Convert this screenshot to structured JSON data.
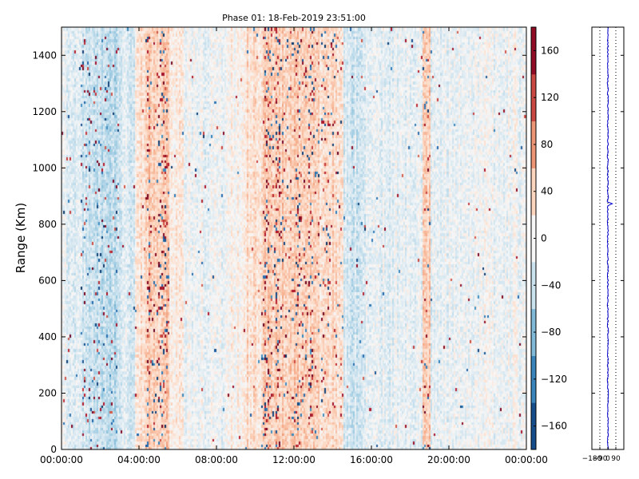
{
  "chart_data": [
    {
      "type": "heatmap",
      "title": "Phase 01: 18-Feb-2019 23:51:00",
      "ylabel": "Range (Km)",
      "xlabel": "",
      "x_tick_labels": [
        "00:00:00",
        "04:00:00",
        "08:00:00",
        "12:00:00",
        "16:00:00",
        "20:00:00",
        "00:00:00"
      ],
      "x_ticks_hours": [
        0,
        4,
        8,
        12,
        16,
        20,
        24
      ],
      "xlim_hours": [
        0,
        24
      ],
      "ylim": [
        0,
        1500
      ],
      "y_ticks": [
        0,
        200,
        400,
        600,
        800,
        1000,
        1200,
        1400
      ],
      "y_tick_labels": [
        "0",
        "200",
        "400",
        "600",
        "800",
        "1000",
        "1200",
        "1400"
      ],
      "colorbar": {
        "range": [
          -180,
          180
        ],
        "ticks": [
          -160,
          -120,
          -80,
          -40,
          0,
          40,
          80,
          120,
          160
        ],
        "tick_labels": [
          "−160",
          "−120",
          "−80",
          "−40",
          "0",
          "40",
          "80",
          "120",
          "160"
        ],
        "colormap": "RdBu_r"
      },
      "vertical_bands": [
        {
          "start_hour": 0.0,
          "end_hour": 1.0,
          "mean_phase": -15
        },
        {
          "start_hour": 1.0,
          "end_hour": 2.0,
          "mean_phase": -35
        },
        {
          "start_hour": 2.0,
          "end_hour": 3.0,
          "mean_phase": -45
        },
        {
          "start_hour": 3.0,
          "end_hour": 3.8,
          "mean_phase": -25
        },
        {
          "start_hour": 3.8,
          "end_hour": 4.3,
          "mean_phase": 25
        },
        {
          "start_hour": 4.3,
          "end_hour": 5.6,
          "mean_phase": 45
        },
        {
          "start_hour": 5.6,
          "end_hour": 6.3,
          "mean_phase": 15
        },
        {
          "start_hour": 6.3,
          "end_hour": 8.5,
          "mean_phase": -8
        },
        {
          "start_hour": 8.5,
          "end_hour": 9.6,
          "mean_phase": 8
        },
        {
          "start_hour": 9.6,
          "end_hour": 10.3,
          "mean_phase": 28
        },
        {
          "start_hour": 10.3,
          "end_hour": 13.2,
          "mean_phase": 42
        },
        {
          "start_hour": 13.2,
          "end_hour": 14.6,
          "mean_phase": 32
        },
        {
          "start_hour": 14.6,
          "end_hour": 15.6,
          "mean_phase": -30
        },
        {
          "start_hour": 15.6,
          "end_hour": 18.7,
          "mean_phase": -15
        },
        {
          "start_hour": 18.7,
          "end_hour": 19.1,
          "mean_phase": 40
        },
        {
          "start_hour": 19.1,
          "end_hour": 21.5,
          "mean_phase": -12
        },
        {
          "start_hour": 21.5,
          "end_hour": 24.0,
          "mean_phase": -6
        }
      ],
      "spike_columns_hours": [
        4.5,
        5.1,
        5.3,
        10.6,
        11.2,
        12.2,
        12.9
      ]
    },
    {
      "type": "line",
      "xlim": [
        -180,
        180
      ],
      "x_tick_labels": [
        "−180",
        "−90",
        "0",
        "90"
      ],
      "x_ticks": [
        -180,
        -90,
        0,
        90
      ],
      "grid_lines_x": [
        -180,
        -90,
        0,
        90,
        180
      ],
      "ylim": [
        0,
        1500
      ],
      "line_color": "#0000cc",
      "mean_value": 0,
      "outlier": {
        "range_km": 870,
        "value": 50
      }
    }
  ]
}
